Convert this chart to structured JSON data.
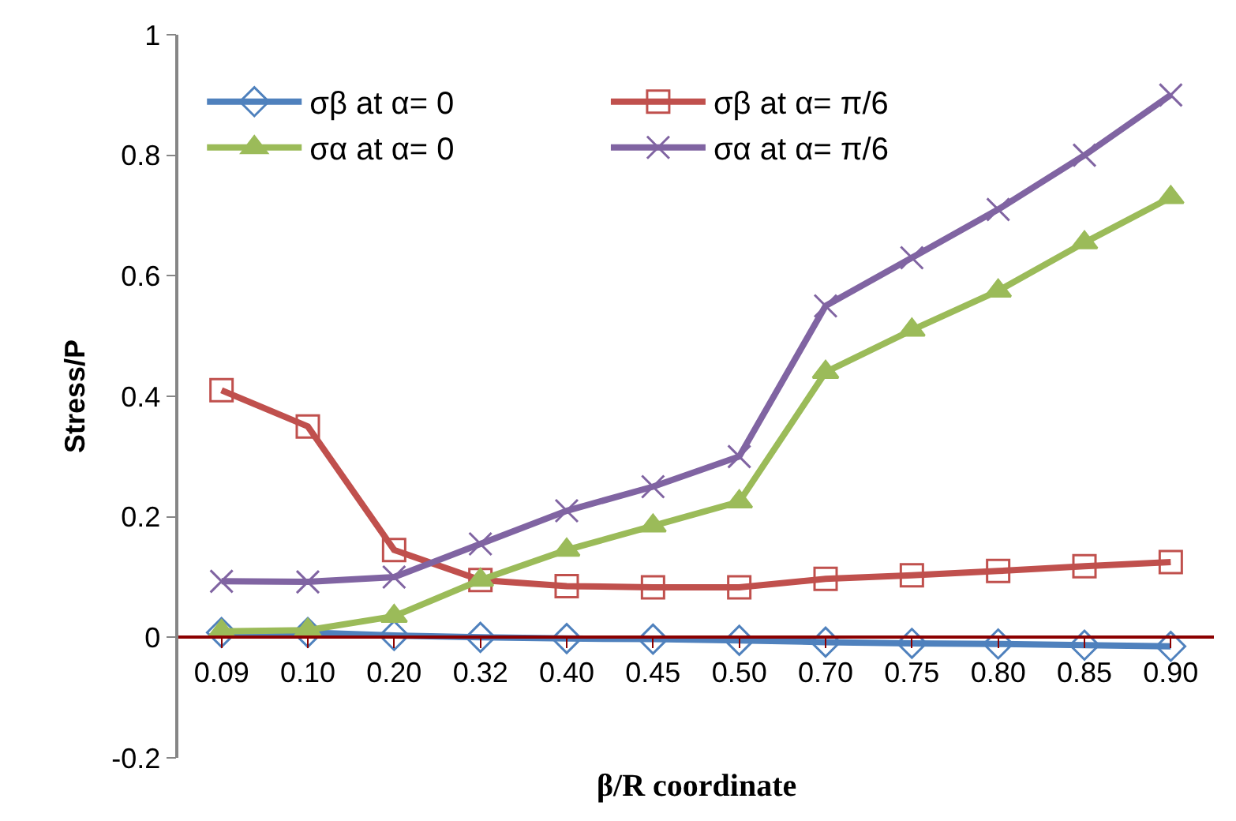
{
  "chart_data": {
    "type": "line",
    "xlabel": "β/R coordinate",
    "ylabel": "Stress/P",
    "categories": [
      "0.09",
      "0.10",
      "0.20",
      "0.32",
      "0.40",
      "0.45",
      "0.50",
      "0.70",
      "0.75",
      "0.80",
      "0.85",
      "0.90"
    ],
    "series": [
      {
        "name": "σβ at α= 0",
        "color": "#4f81bd",
        "marker": "diamond",
        "values": [
          0.008,
          0.008,
          0.003,
          0.0,
          -0.002,
          -0.003,
          -0.005,
          -0.008,
          -0.01,
          -0.011,
          -0.013,
          -0.015
        ]
      },
      {
        "name": "σβ at α= π/6",
        "color": "#c0504d",
        "marker": "square",
        "values": [
          0.41,
          0.35,
          0.145,
          0.095,
          0.085,
          0.083,
          0.083,
          0.097,
          0.103,
          0.11,
          0.118,
          0.125
        ]
      },
      {
        "name": "σα at α= 0",
        "color": "#9bbb59",
        "marker": "triangle",
        "values": [
          0.01,
          0.012,
          0.035,
          0.095,
          0.145,
          0.185,
          0.225,
          0.44,
          0.51,
          0.575,
          0.655,
          0.73
        ]
      },
      {
        "name": "σα at α= π/6",
        "color": "#8064a2",
        "marker": "cross",
        "values": [
          0.093,
          0.092,
          0.1,
          0.155,
          0.21,
          0.25,
          0.3,
          0.55,
          0.63,
          0.71,
          0.8,
          0.9
        ]
      }
    ],
    "ylim": [
      -0.2,
      1
    ],
    "yticks": [
      -0.2,
      0,
      0.2,
      0.4,
      0.6,
      0.8,
      1
    ],
    "grid": false,
    "legend": "top left",
    "line_style": "solid"
  }
}
